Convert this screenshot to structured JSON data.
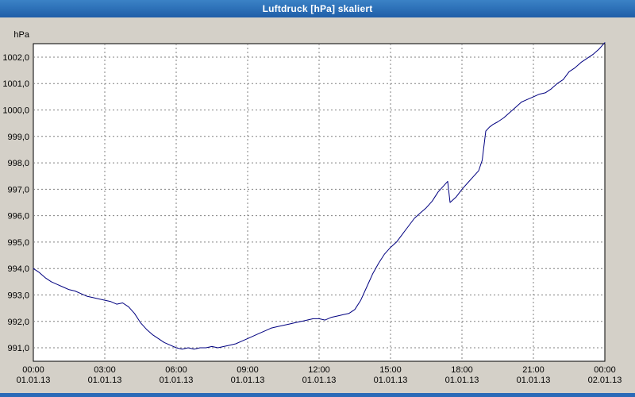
{
  "window": {
    "title": "Luftdruck [hPa] skaliert"
  },
  "colors": {
    "titlebar": "#2a6ab8",
    "window_bg": "#d4d0c8",
    "plot_bg": "#ffffff",
    "plot_border": "#000000",
    "grid": "#808080",
    "text": "#000000",
    "line": "#000080"
  },
  "chart_data": {
    "type": "line",
    "title": "Luftdruck [hPa] skaliert",
    "ylabel": "hPa",
    "xlabel": "",
    "grid": true,
    "legend": "none",
    "xlim": [
      0,
      24
    ],
    "ylim": [
      990.49,
      1002.51
    ],
    "yticks": [
      {
        "v": 991,
        "label": "991,0"
      },
      {
        "v": 992,
        "label": "992,0"
      },
      {
        "v": 993,
        "label": "993,0"
      },
      {
        "v": 994,
        "label": "994,0"
      },
      {
        "v": 995,
        "label": "995,0"
      },
      {
        "v": 996,
        "label": "996,0"
      },
      {
        "v": 997,
        "label": "997,0"
      },
      {
        "v": 998,
        "label": "998,0"
      },
      {
        "v": 999,
        "label": "999,0"
      },
      {
        "v": 1000,
        "label": "1000,0"
      },
      {
        "v": 1001,
        "label": "1001,0"
      },
      {
        "v": 1002,
        "label": "1002,0"
      }
    ],
    "xticks": [
      {
        "h": 0,
        "time": "00:00",
        "date": "01.01.13"
      },
      {
        "h": 3,
        "time": "03:00",
        "date": "01.01.13"
      },
      {
        "h": 6,
        "time": "06:00",
        "date": "01.01.13"
      },
      {
        "h": 9,
        "time": "09:00",
        "date": "01.01.13"
      },
      {
        "h": 12,
        "time": "12:00",
        "date": "01.01.13"
      },
      {
        "h": 15,
        "time": "15:00",
        "date": "01.01.13"
      },
      {
        "h": 18,
        "time": "18:00",
        "date": "01.01.13"
      },
      {
        "h": 21,
        "time": "21:00",
        "date": "01.01.13"
      },
      {
        "h": 24,
        "time": "00:00",
        "date": "02.01.13"
      }
    ],
    "series": [
      {
        "name": "Luftdruck",
        "color": "#000080",
        "points": [
          [
            0,
            994.0
          ],
          [
            0.25,
            993.85
          ],
          [
            0.5,
            993.65
          ],
          [
            0.75,
            993.5
          ],
          [
            1,
            993.4
          ],
          [
            1.25,
            993.3
          ],
          [
            1.5,
            993.2
          ],
          [
            1.75,
            993.15
          ],
          [
            2,
            993.05
          ],
          [
            2.25,
            992.95
          ],
          [
            2.5,
            992.9
          ],
          [
            2.75,
            992.85
          ],
          [
            3,
            992.8
          ],
          [
            3.25,
            992.75
          ],
          [
            3.5,
            992.65
          ],
          [
            3.75,
            992.7
          ],
          [
            4,
            992.55
          ],
          [
            4.25,
            992.3
          ],
          [
            4.5,
            991.95
          ],
          [
            4.75,
            991.7
          ],
          [
            5,
            991.5
          ],
          [
            5.25,
            991.35
          ],
          [
            5.5,
            991.2
          ],
          [
            5.75,
            991.1
          ],
          [
            6,
            991.0
          ],
          [
            6.25,
            990.95
          ],
          [
            6.5,
            991.0
          ],
          [
            6.75,
            990.95
          ],
          [
            7,
            991.0
          ],
          [
            7.25,
            991.0
          ],
          [
            7.5,
            991.05
          ],
          [
            7.75,
            991.0
          ],
          [
            8,
            991.05
          ],
          [
            8.25,
            991.1
          ],
          [
            8.5,
            991.15
          ],
          [
            8.75,
            991.25
          ],
          [
            9,
            991.35
          ],
          [
            9.25,
            991.45
          ],
          [
            9.5,
            991.55
          ],
          [
            9.75,
            991.65
          ],
          [
            10,
            991.75
          ],
          [
            10.25,
            991.8
          ],
          [
            10.5,
            991.85
          ],
          [
            10.75,
            991.9
          ],
          [
            11,
            991.95
          ],
          [
            11.25,
            992.0
          ],
          [
            11.5,
            992.05
          ],
          [
            11.75,
            992.1
          ],
          [
            12,
            992.1
          ],
          [
            12.25,
            992.05
          ],
          [
            12.5,
            992.15
          ],
          [
            12.75,
            992.2
          ],
          [
            13,
            992.25
          ],
          [
            13.25,
            992.3
          ],
          [
            13.5,
            992.45
          ],
          [
            13.75,
            992.8
          ],
          [
            14,
            993.3
          ],
          [
            14.25,
            993.8
          ],
          [
            14.5,
            994.2
          ],
          [
            14.75,
            994.55
          ],
          [
            15,
            994.8
          ],
          [
            15.25,
            995.0
          ],
          [
            15.5,
            995.3
          ],
          [
            15.75,
            995.6
          ],
          [
            16,
            995.9
          ],
          [
            16.25,
            996.1
          ],
          [
            16.5,
            996.3
          ],
          [
            16.75,
            996.55
          ],
          [
            17,
            996.9
          ],
          [
            17.25,
            997.15
          ],
          [
            17.4,
            997.3
          ],
          [
            17.5,
            996.5
          ],
          [
            17.75,
            996.7
          ],
          [
            18,
            997.0
          ],
          [
            18.25,
            997.25
          ],
          [
            18.5,
            997.5
          ],
          [
            18.7,
            997.7
          ],
          [
            18.85,
            998.1
          ],
          [
            19,
            999.2
          ],
          [
            19.15,
            999.35
          ],
          [
            19.3,
            999.45
          ],
          [
            19.5,
            999.55
          ],
          [
            19.75,
            999.7
          ],
          [
            20,
            999.9
          ],
          [
            20.25,
            1000.1
          ],
          [
            20.5,
            1000.3
          ],
          [
            20.75,
            1000.4
          ],
          [
            21,
            1000.5
          ],
          [
            21.25,
            1000.6
          ],
          [
            21.5,
            1000.65
          ],
          [
            21.75,
            1000.8
          ],
          [
            22,
            1001.0
          ],
          [
            22.25,
            1001.15
          ],
          [
            22.5,
            1001.45
          ],
          [
            22.75,
            1001.6
          ],
          [
            23,
            1001.8
          ],
          [
            23.25,
            1001.95
          ],
          [
            23.5,
            1002.1
          ],
          [
            23.75,
            1002.3
          ],
          [
            24,
            1002.55
          ]
        ]
      }
    ]
  }
}
